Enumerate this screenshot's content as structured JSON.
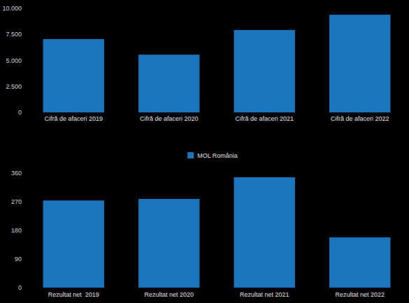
{
  "chart_data": [
    {
      "type": "bar",
      "categories": [
        "Cifră de afaceri 2019",
        "Cifră de afaceri 2020",
        "Cifră de afaceri 2021",
        "Cifră de afaceri 2022"
      ],
      "series": [
        {
          "name": "MOL România",
          "color": "#1b75bc",
          "values": [
            7050,
            5550,
            7920,
            9390
          ]
        }
      ],
      "ylim": [
        0,
        10000
      ],
      "yticks": [
        0,
        {
          "value": 2500,
          "label": "2.500"
        },
        {
          "value": 5000,
          "label": "5.000"
        },
        {
          "value": 7500,
          "label": "7.500"
        },
        {
          "value": 10000,
          "label": "10.000"
        }
      ],
      "grid": false,
      "legend": "bottom"
    },
    {
      "type": "bar",
      "categories": [
        "Rezultat net  2019",
        "Rezultat net 2020",
        "Rezultat net 2021",
        "Rezultat net 2022"
      ],
      "values": [
        274,
        279,
        347,
        158
      ],
      "color": "#1b75bc",
      "ylim": [
        0,
        360
      ],
      "yticks": [
        0,
        90,
        180,
        270,
        360
      ],
      "grid": false
    }
  ]
}
